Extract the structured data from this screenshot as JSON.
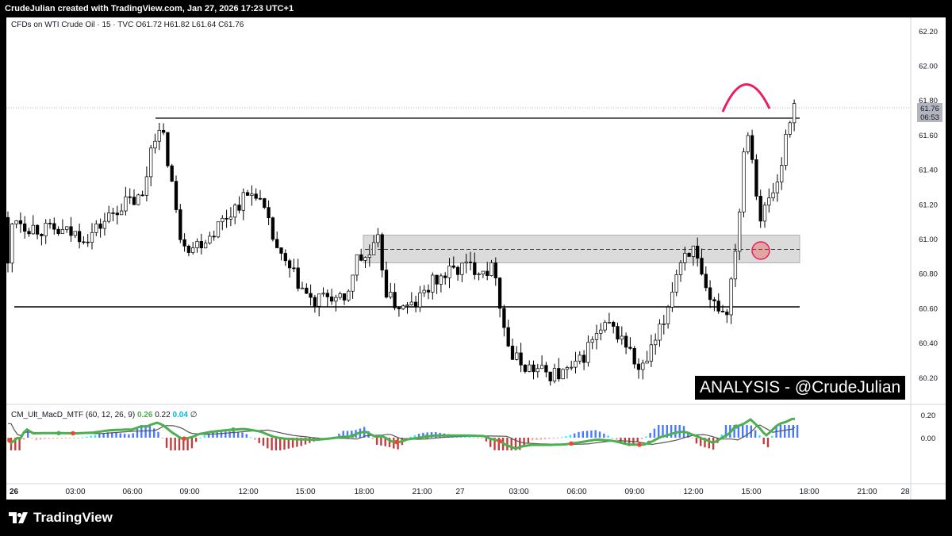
{
  "header": {
    "attribution": "CrudeJulian created with TradingView.com, Jan 27, 2026 17:23 UTC+1"
  },
  "legend": {
    "symbol": "CFDs on WTI Crude Oil · 15 · TVC",
    "open": "O61.72",
    "high": "H61.82",
    "low": "L61.64",
    "close": "C61.76"
  },
  "indicator": {
    "name": "CM_Ult_MacD_MTF (60, 12, 26, 9)",
    "v1": "0.26",
    "v2": "0.22",
    "v3": "0.04",
    "v4": "∅",
    "axis_labels": [
      "0.20",
      "0.00"
    ]
  },
  "watermark": "ANALYSIS - @CrudeJulian",
  "footer": {
    "brand": "TradingView"
  },
  "price_tag": {
    "price": "61.76",
    "countdown": "06:53"
  },
  "colors": {
    "bull": "#ffffff",
    "bear": "#000000",
    "arc": "#e91e63",
    "zone": "#cccccc",
    "macd_up": "#4caf50",
    "macd_down": "#f44336"
  },
  "chart_data": {
    "type": "candlestick",
    "timeframe": "15",
    "y_ticks": [
      "62.20",
      "62.00",
      "61.80",
      "61.60",
      "61.40",
      "61.20",
      "61.00",
      "60.80",
      "60.60",
      "60.40",
      "60.20"
    ],
    "x_ticks": [
      "26",
      "03:00",
      "06:00",
      "09:00",
      "12:00",
      "15:00",
      "18:00",
      "21:00",
      "27",
      "03:00",
      "06:00",
      "09:00",
      "12:00",
      "15:00",
      "18:00",
      "21:00",
      "28"
    ],
    "ylim": [
      60.1,
      62.3
    ],
    "resistance_level": 61.7,
    "support_level": 60.62,
    "zone": [
      60.87,
      61.03
    ],
    "zone_mid": 60.95
  }
}
